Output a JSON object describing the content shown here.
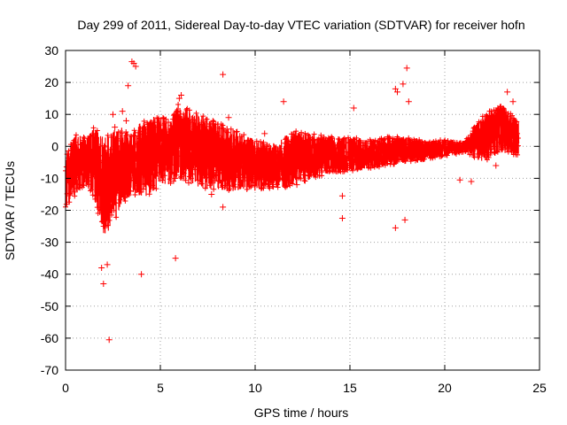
{
  "chart_data": {
    "type": "scatter",
    "title": "Day 299 of 2011, Sidereal Day-to-day VTEC variation (SDTVAR) for receiver hofn",
    "xlabel": "GPS time / hours",
    "ylabel": "SDTVAR / TECUs",
    "xlim": [
      0,
      25
    ],
    "ylim": [
      -70,
      30
    ],
    "xticks": [
      0,
      5,
      10,
      15,
      20,
      25
    ],
    "yticks": [
      -70,
      -60,
      -50,
      -40,
      -30,
      -20,
      -10,
      0,
      10,
      20,
      30
    ],
    "grid": true,
    "marker": "+",
    "color": "#ff0000",
    "series": [
      {
        "name": "SDTVAR",
        "envelope": {
          "hours": [
            0.0,
            0.3,
            0.6,
            1.0,
            1.5,
            2.0,
            2.5,
            3.0,
            3.5,
            4.0,
            4.5,
            5.0,
            5.5,
            6.0,
            7.0,
            8.0,
            9.0,
            10.0,
            11.0,
            12.0,
            13.0,
            14.0,
            15.0,
            16.0,
            17.0,
            18.0,
            19.0,
            20.0,
            21.0,
            22.0,
            23.0,
            23.9
          ],
          "upper": [
            -2,
            2,
            4,
            3,
            6,
            3,
            5,
            6,
            4,
            8,
            9,
            10,
            8,
            14,
            10,
            8,
            5,
            2,
            1,
            5,
            4,
            3,
            3,
            2,
            3,
            3,
            2,
            2,
            1,
            10,
            13,
            8
          ],
          "lower": [
            -20,
            -18,
            -15,
            -12,
            -16,
            -28,
            -25,
            -18,
            -15,
            -16,
            -15,
            -12,
            -12,
            -10,
            -13,
            -14,
            -14,
            -14,
            -13,
            -13,
            -10,
            -9,
            -8,
            -7,
            -6,
            -5,
            -4,
            -3,
            -2,
            -5,
            -2,
            -3
          ]
        },
        "outliers": [
          {
            "x": 3.5,
            "y": 26.5
          },
          {
            "x": 3.6,
            "y": 26
          },
          {
            "x": 3.7,
            "y": 25
          },
          {
            "x": 4.0,
            "y": -40
          },
          {
            "x": 2.0,
            "y": -43
          },
          {
            "x": 2.3,
            "y": -60.5
          },
          {
            "x": 1.9,
            "y": -38
          },
          {
            "x": 2.2,
            "y": -37
          },
          {
            "x": 2.5,
            "y": 10
          },
          {
            "x": 2.6,
            "y": 6
          },
          {
            "x": 3.0,
            "y": 11
          },
          {
            "x": 3.2,
            "y": 8
          },
          {
            "x": 5.8,
            "y": -35
          },
          {
            "x": 6.0,
            "y": 15
          },
          {
            "x": 6.1,
            "y": 16
          },
          {
            "x": 8.3,
            "y": 22.5
          },
          {
            "x": 8.3,
            "y": -19
          },
          {
            "x": 8.6,
            "y": 9
          },
          {
            "x": 11.5,
            "y": 14
          },
          {
            "x": 14.6,
            "y": -15.5
          },
          {
            "x": 14.6,
            "y": -22.5
          },
          {
            "x": 15.2,
            "y": 12
          },
          {
            "x": 17.4,
            "y": -25.5
          },
          {
            "x": 17.4,
            "y": 18
          },
          {
            "x": 17.5,
            "y": 17
          },
          {
            "x": 17.9,
            "y": -23
          },
          {
            "x": 17.8,
            "y": 19.5
          },
          {
            "x": 18.0,
            "y": 24.5
          },
          {
            "x": 18.1,
            "y": 14
          },
          {
            "x": 20.8,
            "y": -10.5
          },
          {
            "x": 21.4,
            "y": -11
          },
          {
            "x": 22.7,
            "y": -6
          },
          {
            "x": 23.3,
            "y": 17
          },
          {
            "x": 23.6,
            "y": 14
          },
          {
            "x": 3.3,
            "y": 19
          },
          {
            "x": 7.7,
            "y": -15
          },
          {
            "x": 9.1,
            "y": -9
          },
          {
            "x": 10.5,
            "y": 4
          },
          {
            "x": 12.2,
            "y": -12
          },
          {
            "x": 13.5,
            "y": -8
          }
        ]
      }
    ]
  }
}
